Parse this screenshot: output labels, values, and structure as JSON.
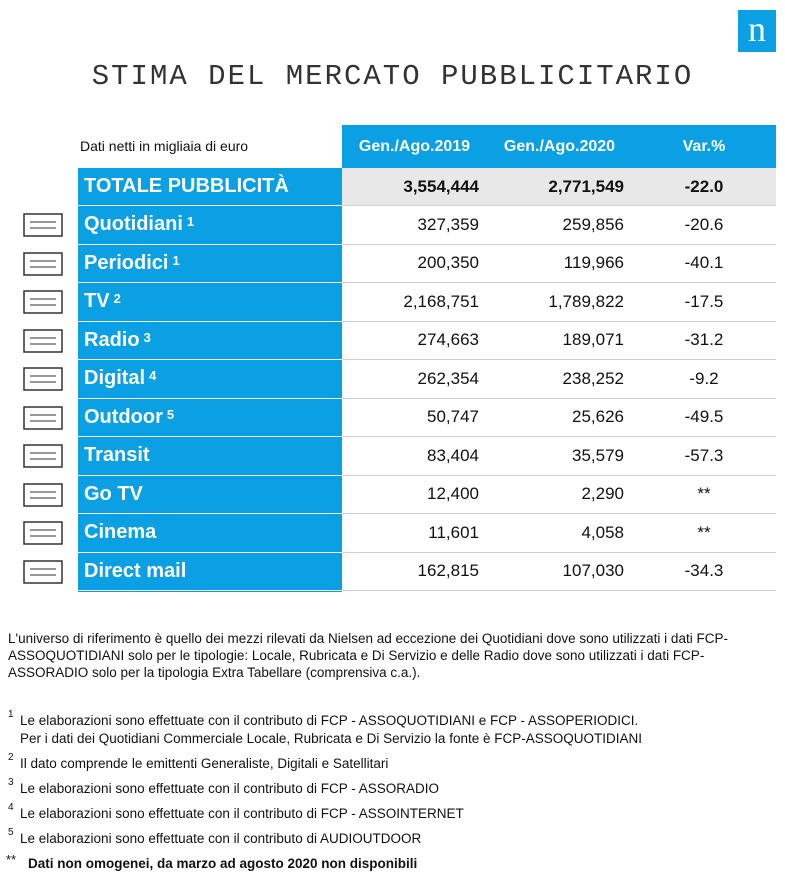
{
  "logo": "n",
  "title": "STIMA DEL MERCATO PUBBLICITARIO",
  "table": {
    "unit_note": "Dati netti in migliaia di euro",
    "columns": [
      "Gen./Ago.2019",
      "Gen./Ago.2020",
      "Var.%"
    ],
    "total": {
      "label": "TOTALE PUBBLICITÀ",
      "cells": [
        "3,554,444",
        "2,771,549",
        "-22.0"
      ]
    },
    "rows": [
      {
        "label": "Quotidiani",
        "note": "1",
        "cells": [
          "327,359",
          "259,856",
          "-20.6"
        ]
      },
      {
        "label": "Periodici",
        "note": "1",
        "cells": [
          "200,350",
          "119,966",
          "-40.1"
        ]
      },
      {
        "label": "TV",
        "note": "2",
        "cells": [
          "2,168,751",
          "1,789,822",
          "-17.5"
        ]
      },
      {
        "label": "Radio",
        "note": "3",
        "cells": [
          "274,663",
          "189,071",
          "-31.2"
        ]
      },
      {
        "label": "Digital",
        "note": "4",
        "cells": [
          "262,354",
          "238,252",
          "-9.2"
        ]
      },
      {
        "label": "Outdoor",
        "note": "5",
        "cells": [
          "50,747",
          "25,626",
          "-49.5"
        ]
      },
      {
        "label": "Transit",
        "cells": [
          "83,404",
          "35,579",
          "-57.3"
        ]
      },
      {
        "label": "Go TV",
        "cells": [
          "12,400",
          "2,290",
          "**"
        ]
      },
      {
        "label": "Cinema",
        "cells": [
          "11,601",
          "4,058",
          "**"
        ]
      },
      {
        "label": "Direct mail",
        "cells": [
          "162,815",
          "107,030",
          "-34.3"
        ]
      }
    ]
  },
  "intro": "L'universo di riferimento è quello dei mezzi rilevati da Nielsen ad eccezione dei Quotidiani dove sono utilizzati i dati FCP-ASSOQUOTIDIANI solo per le tipologie: Locale, Rubricata e Di Servizio e delle Radio dove sono utilizzati i dati FCP-ASSORADIO solo per la tipologia Extra Tabellare (comprensiva c.a.).",
  "footnotes": [
    {
      "marker": "1",
      "lines": [
        "Le elaborazioni sono effettuate con il contributo di FCP - ASSOQUOTIDIANI e FCP - ASSOPERIODICI.",
        "Per i dati dei Quotidiani Commerciale Locale, Rubricata e Di Servizio la fonte è  FCP-ASSOQUOTIDIANI"
      ]
    },
    {
      "marker": "2",
      "lines": [
        "Il dato comprende le emittenti Generaliste, Digitali e Satellitari"
      ]
    },
    {
      "marker": "3",
      "lines": [
        "Le elaborazioni sono effettuate con il contributo di FCP - ASSORADIO"
      ]
    },
    {
      "marker": "4",
      "lines": [
        "Le elaborazioni sono effettuate con il contributo di FCP - ASSOINTERNET"
      ]
    },
    {
      "marker": "5",
      "lines": [
        "Le elaborazioni sono effettuate con il contributo di AUDIOUTDOOR"
      ]
    },
    {
      "marker": "**",
      "lines": [
        "Dati non omogenei, da marzo ad agosto 2020 non disponibili"
      ],
      "bold": true
    }
  ]
}
